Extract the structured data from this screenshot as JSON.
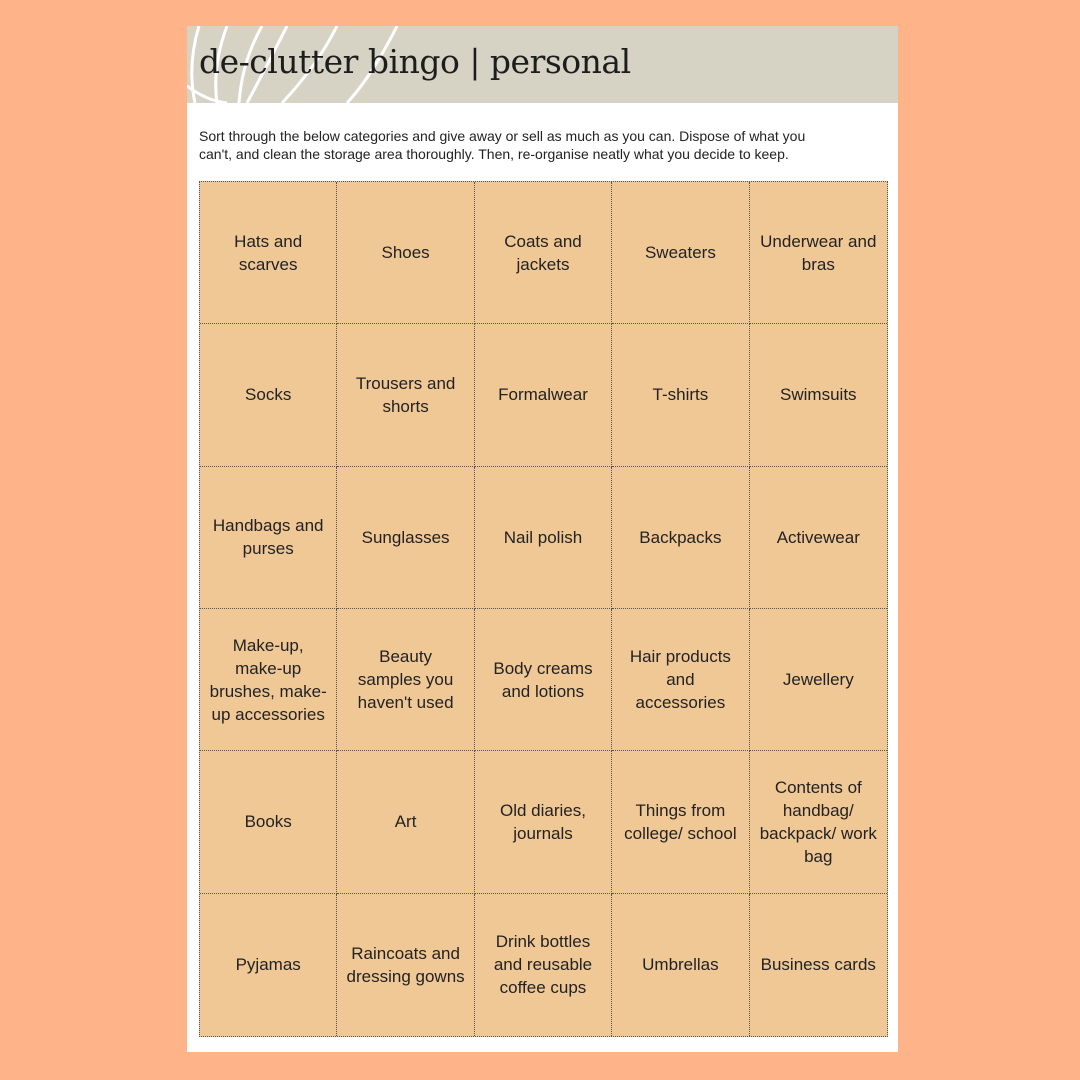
{
  "header": {
    "title": "de-clutter bingo | personal"
  },
  "intro": "Sort through the below categories and give away or sell as much as you can. Dispose of what you can't, and clean the storage area thoroughly. Then, re-organise neatly what you decide to keep.",
  "colors": {
    "background": "#ffb388",
    "header": "#d6d3c5",
    "cell": "#f0c896"
  },
  "cells": [
    "Hats and scarves",
    "Shoes",
    "Coats and jackets",
    "Sweaters",
    "Underwear and bras",
    "Socks",
    "Trousers and shorts",
    "Formalwear",
    "T-shirts",
    "Swimsuits",
    "Handbags and purses",
    "Sunglasses",
    "Nail polish",
    "Backpacks",
    "Activewear",
    "Make-up, make-up brushes, make-up accessories",
    "Beauty samples you haven't used",
    "Body creams and lotions",
    "Hair products and accessories",
    "Jewellery",
    "Books",
    "Art",
    "Old diaries, journals",
    "Things from college/ school",
    "Contents of handbag/ backpack/ work bag",
    "Pyjamas",
    "Raincoats and dressing gowns",
    "Drink bottles and reusable coffee cups",
    "Umbrellas",
    "Business cards"
  ]
}
